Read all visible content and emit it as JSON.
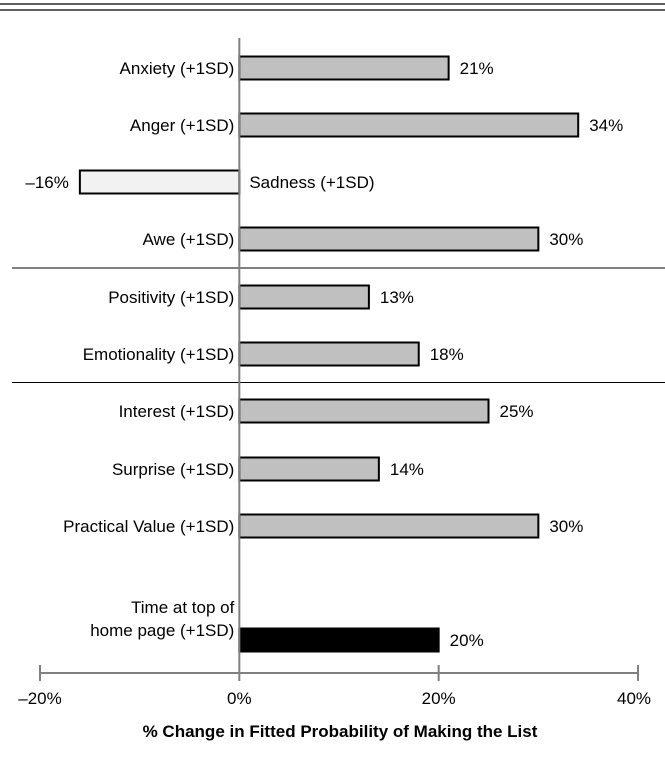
{
  "chart_data": {
    "type": "bar",
    "orientation": "horizontal",
    "xlabel": "% Change in Fitted Probability of Making the List",
    "xlim": [
      -20,
      40
    ],
    "xticks": [
      -20,
      0,
      20,
      40
    ],
    "xtick_labels": [
      "–20%",
      "0%",
      "20%",
      "40%"
    ],
    "bars": [
      {
        "category": "Anxiety (+1SD)",
        "value": 21,
        "label": "21%",
        "fill": "#c0c0c0"
      },
      {
        "category": "Anger (+1SD)",
        "value": 34,
        "label": "34%",
        "fill": "#c0c0c0"
      },
      {
        "category": "Sadness (+1SD)",
        "value": -16,
        "label": "–16%",
        "fill": "#f2f2f2"
      },
      {
        "category": "Awe (+1SD)",
        "value": 30,
        "label": "30%",
        "fill": "#c0c0c0"
      },
      {
        "category": "Positivity (+1SD)",
        "value": 13,
        "label": "13%",
        "fill": "#c0c0c0"
      },
      {
        "category": "Emotionality (+1SD)",
        "value": 18,
        "label": "18%",
        "fill": "#c0c0c0"
      },
      {
        "category": "Interest (+1SD)",
        "value": 25,
        "label": "25%",
        "fill": "#c0c0c0"
      },
      {
        "category": "Surprise (+1SD)",
        "value": 14,
        "label": "14%",
        "fill": "#c0c0c0"
      },
      {
        "category": "Practical Value (+1SD)",
        "value": 30,
        "label": "30%",
        "fill": "#c0c0c0"
      },
      {
        "category": "Time at top of\nhome page (+1SD)",
        "value": 20,
        "label": "20%",
        "fill": "#000000"
      }
    ],
    "group_separators_after": [
      3,
      5
    ]
  }
}
